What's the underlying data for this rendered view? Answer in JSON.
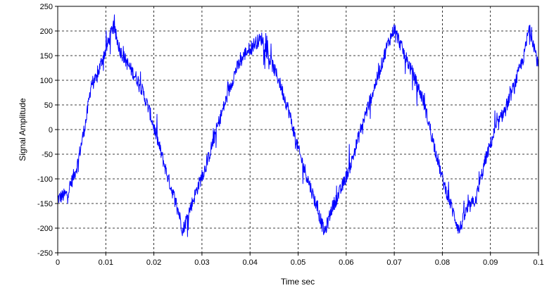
{
  "chart_data": {
    "type": "line",
    "xlabel": "Time sec",
    "ylabel": "Signal Amplitude",
    "xlim": [
      0,
      0.1
    ],
    "ylim": [
      -250,
      250
    ],
    "x_ticks": [
      "0",
      "0.01",
      "0.02",
      "0.03",
      "0.04",
      "0.05",
      "0.06",
      "0.07",
      "0.08",
      "0.09",
      "0.1"
    ],
    "y_ticks": [
      "250",
      "200",
      "150",
      "100",
      "50",
      "0",
      "-50",
      "-100",
      "-150",
      "-200",
      "-250"
    ],
    "grid": true,
    "series": [
      {
        "color": "#0000ff",
        "x": [
          0,
          0.002,
          0.004,
          0.006,
          0.007,
          0.008,
          0.009,
          0.0105,
          0.0115,
          0.013,
          0.015,
          0.017,
          0.019,
          0.021,
          0.023,
          0.025,
          0.026,
          0.027,
          0.029,
          0.031,
          0.033,
          0.035,
          0.037,
          0.039,
          0.041,
          0.0425,
          0.044,
          0.046,
          0.048,
          0.05,
          0.052,
          0.054,
          0.0555,
          0.057,
          0.059,
          0.061,
          0.063,
          0.065,
          0.067,
          0.0685,
          0.07,
          0.072,
          0.074,
          0.076,
          0.078,
          0.08,
          0.082,
          0.0835,
          0.085,
          0.087,
          0.089,
          0.091,
          0.093,
          0.095,
          0.097,
          0.098,
          0.099,
          0.1
        ],
        "y": [
          -140,
          -130,
          -75,
          25,
          95,
          100,
          135,
          175,
          210,
          160,
          125,
          95,
          40,
          -30,
          -100,
          -160,
          -205,
          -175,
          -120,
          -70,
          0,
          60,
          120,
          155,
          175,
          185,
          145,
          100,
          40,
          -40,
          -100,
          -160,
          -210,
          -160,
          -120,
          -70,
          0,
          60,
          120,
          170,
          205,
          155,
          110,
          60,
          -20,
          -100,
          -160,
          -205,
          -165,
          -140,
          -60,
          0,
          40,
          90,
          150,
          205,
          175,
          125
        ]
      }
    ]
  }
}
